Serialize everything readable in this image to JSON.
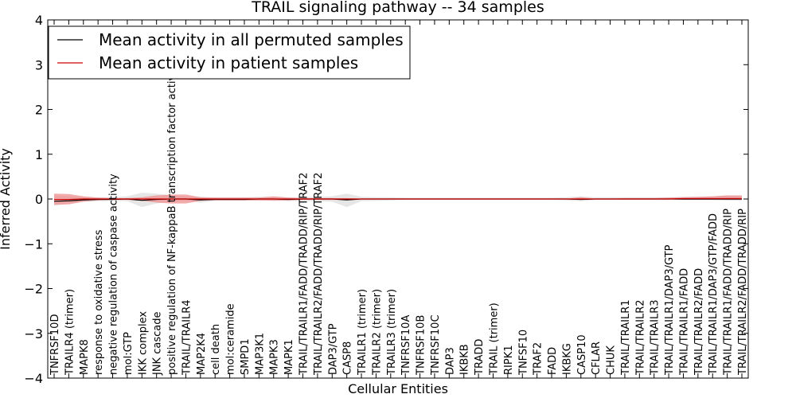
{
  "chart_data": {
    "type": "line",
    "title": "TRAIL signaling pathway -- 34 samples",
    "xlabel": "Cellular Entities",
    "ylabel": "Inferred Activity",
    "ylim": [
      -4,
      4
    ],
    "yticks": [
      4,
      3,
      2,
      1,
      0,
      -1,
      -2,
      -3,
      -4
    ],
    "ytick_labels": [
      "4",
      "3",
      "2",
      "1",
      "0",
      "−1",
      "−2",
      "−3",
      "−4"
    ],
    "categories": [
      "TNFRSF10D",
      "TRAILR4 (trimer)",
      "MAPK8",
      "response to oxidative stress",
      "negative regulation of caspase activity",
      "mol:GTP",
      "IKK complex",
      "JNK cascade",
      "positive regulation of NF-kappaB transcription factor activity",
      "TRAIL/TRAILR4",
      "MAP2K4",
      "cell death",
      "mol:ceramide",
      "SMPD1",
      "MAP3K1",
      "MAPK3",
      "MAPK1",
      "TRAIL/TRAILR1/FADD/TRADD/RIP/TRAF2",
      "TRAIL/TRAILR2/FADD/TRADD/RIP/TRAF2",
      "DAP3/GTP",
      "CASP8",
      "TRAILR1 (trimer)",
      "TRAILR2 (trimer)",
      "TRAILR3 (trimer)",
      "TNFRSF10A",
      "TNFRSF10B",
      "TNFRSF10C",
      "DAP3",
      "IKBKB",
      "TRADD",
      "TRAIL (trimer)",
      "RIPK1",
      "TNFSF10",
      "TRAF2",
      "FADD",
      "IKBKG",
      "CASP10",
      "CFLAR",
      "CHUK",
      "TRAIL/TRAILR1",
      "TRAIL/TRAILR2",
      "TRAIL/TRAILR3",
      "TRAIL/TRAILR1/DAP3/GTP",
      "TRAIL/TRAILR1/FADD",
      "TRAIL/TRAILR2/FADD",
      "TRAIL/TRAILR1/DAP3/GTP/FADD",
      "TRAIL/TRAILR1/FADD/TRADD/RIP",
      "TRAIL/TRAILR2/FADD/TRADD/RIP"
    ],
    "series": [
      {
        "name": "Mean activity in all permuted samples",
        "color": "#000000",
        "values": [
          -0.05,
          -0.04,
          -0.02,
          -0.01,
          -0.01,
          0.0,
          -0.03,
          -0.01,
          0.0,
          0.0,
          -0.02,
          -0.01,
          -0.01,
          -0.01,
          0.0,
          0.0,
          -0.01,
          0.0,
          0.0,
          0.0,
          -0.02,
          0.0,
          0.0,
          0.0,
          0.0,
          0.0,
          0.0,
          0.0,
          0.0,
          0.0,
          0.0,
          0.0,
          0.0,
          0.0,
          0.0,
          0.0,
          -0.01,
          0.0,
          0.0,
          0.0,
          0.0,
          0.0,
          0.0,
          0.0,
          0.0,
          0.0,
          0.0,
          0.0
        ],
        "band_lower": [
          -0.15,
          -0.1,
          -0.06,
          -0.05,
          -0.04,
          -0.05,
          -0.18,
          -0.1,
          -0.06,
          -0.05,
          -0.08,
          -0.04,
          -0.04,
          -0.04,
          -0.04,
          -0.03,
          -0.05,
          -0.04,
          -0.05,
          -0.06,
          -0.18,
          -0.05,
          -0.04,
          -0.03,
          -0.02,
          -0.02,
          -0.02,
          -0.02,
          -0.02,
          -0.02,
          -0.02,
          -0.02,
          -0.02,
          -0.02,
          -0.02,
          -0.03,
          -0.05,
          -0.02,
          -0.02,
          -0.02,
          -0.02,
          -0.02,
          -0.02,
          -0.02,
          -0.02,
          -0.02,
          -0.03,
          -0.03
        ],
        "band_upper": [
          0.08,
          0.06,
          0.04,
          0.04,
          0.04,
          0.06,
          0.14,
          0.12,
          0.08,
          0.06,
          0.05,
          0.04,
          0.04,
          0.04,
          0.05,
          0.05,
          0.04,
          0.04,
          0.05,
          0.06,
          0.12,
          0.05,
          0.04,
          0.04,
          0.03,
          0.03,
          0.03,
          0.03,
          0.03,
          0.03,
          0.03,
          0.03,
          0.03,
          0.03,
          0.03,
          0.04,
          0.06,
          0.04,
          0.04,
          0.04,
          0.04,
          0.04,
          0.04,
          0.05,
          0.05,
          0.06,
          0.08,
          0.08
        ]
      },
      {
        "name": "Mean activity in patient samples",
        "color": "#cc0000",
        "values": [
          -0.01,
          -0.01,
          0.0,
          0.0,
          0.0,
          0.0,
          0.0,
          0.0,
          0.0,
          0.0,
          0.0,
          0.0,
          0.0,
          0.0,
          0.0,
          0.0,
          0.0,
          0.0,
          0.0,
          0.0,
          0.0,
          0.0,
          0.0,
          0.0,
          0.0,
          0.0,
          0.0,
          0.0,
          0.0,
          0.0,
          0.0,
          0.0,
          0.0,
          0.0,
          0.0,
          0.0,
          0.0,
          0.0,
          0.0,
          0.0,
          0.0,
          0.0,
          0.0,
          0.01,
          0.01,
          0.01,
          0.01,
          0.01
        ],
        "band_lower": [
          -0.13,
          -0.12,
          -0.06,
          -0.03,
          -0.02,
          -0.02,
          -0.04,
          -0.08,
          -0.1,
          -0.1,
          -0.04,
          -0.03,
          -0.03,
          -0.03,
          -0.03,
          -0.04,
          -0.03,
          -0.02,
          -0.02,
          -0.02,
          -0.02,
          -0.01,
          -0.01,
          -0.01,
          -0.01,
          -0.01,
          -0.01,
          -0.01,
          -0.01,
          -0.01,
          -0.01,
          -0.01,
          -0.01,
          -0.01,
          -0.01,
          -0.01,
          -0.02,
          -0.01,
          -0.01,
          -0.01,
          -0.01,
          -0.01,
          -0.01,
          -0.02,
          -0.02,
          -0.02,
          -0.02,
          -0.02
        ],
        "band_upper": [
          0.12,
          0.11,
          0.06,
          0.03,
          0.02,
          0.02,
          0.04,
          0.08,
          0.1,
          0.1,
          0.04,
          0.03,
          0.03,
          0.03,
          0.03,
          0.06,
          0.03,
          0.02,
          0.02,
          0.02,
          0.02,
          0.01,
          0.01,
          0.01,
          0.01,
          0.01,
          0.01,
          0.01,
          0.01,
          0.01,
          0.01,
          0.01,
          0.01,
          0.01,
          0.01,
          0.01,
          0.04,
          0.01,
          0.01,
          0.02,
          0.02,
          0.02,
          0.03,
          0.04,
          0.05,
          0.06,
          0.08,
          0.08
        ]
      }
    ],
    "legend_position": "top-left",
    "band_colors": {
      "permuted": "#dddddd",
      "patient": "#ee8888"
    }
  }
}
